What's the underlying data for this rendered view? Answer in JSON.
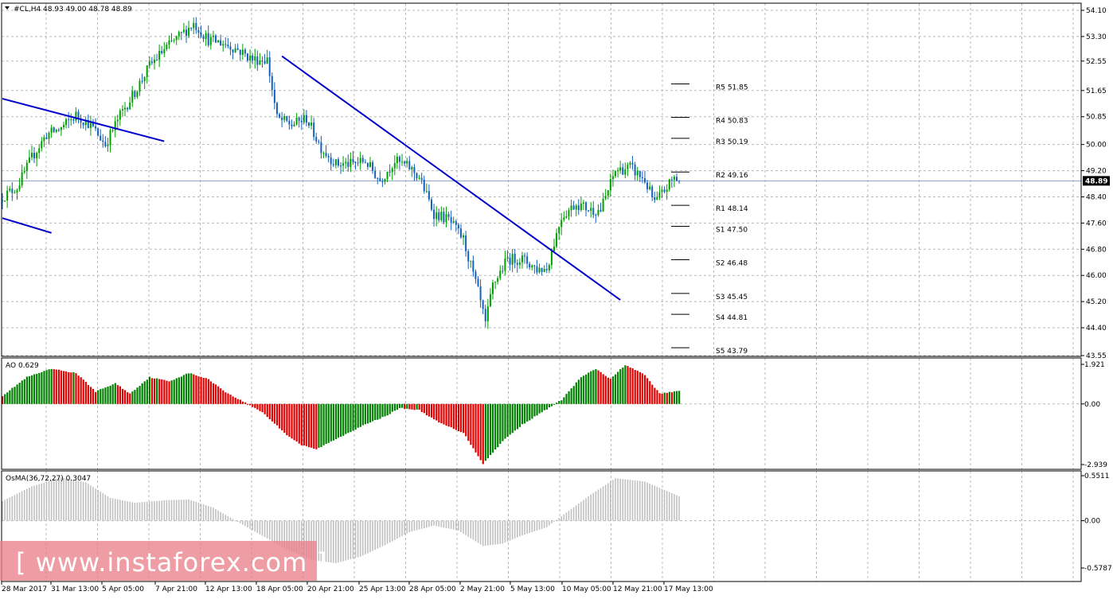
{
  "chart_data": [
    {
      "panel": "price",
      "type": "candlestick",
      "header": "#CL,H4  48.93 49.00 48.78 48.89",
      "symbol": "#CL",
      "timeframe": "H4",
      "ohlc_header": [
        48.93,
        49.0,
        48.78,
        48.89
      ],
      "last_price": 48.89,
      "last_price_label": "48.89",
      "ylim": [
        43.55,
        54.1
      ],
      "ytick_labels": [
        "54.10",
        "53.30",
        "52.55",
        "51.65",
        "50.85",
        "50.00",
        "49.20",
        "48.40",
        "47.60",
        "46.80",
        "46.00",
        "45.20",
        "44.40",
        "43.55"
      ],
      "ytick_values": [
        54.1,
        53.3,
        52.55,
        51.65,
        50.85,
        50.0,
        49.2,
        48.4,
        47.6,
        46.8,
        46.0,
        45.2,
        44.4,
        43.55
      ],
      "xtick_labels": [
        "28 Mar 2017",
        "31 Mar 13:00",
        "5 Apr 05:00",
        "7 Apr 21:00",
        "12 Apr 13:00",
        "18 Apr 05:00",
        "20 Apr 21:00",
        "25 Apr 13:00",
        "28 Apr 05:00",
        "2 May 21:00",
        "5 May 13:00",
        "10 May 05:00",
        "12 May 21:00",
        "17 May 13:00"
      ],
      "close_path": [
        [
          0,
          48.4
        ],
        [
          6,
          48.7
        ],
        [
          12,
          49.6
        ],
        [
          18,
          50.3
        ],
        [
          24,
          50.5
        ],
        [
          30,
          50.9
        ],
        [
          36,
          50.6
        ],
        [
          42,
          50.0
        ],
        [
          48,
          50.9
        ],
        [
          54,
          51.6
        ],
        [
          60,
          52.4
        ],
        [
          66,
          52.9
        ],
        [
          72,
          53.3
        ],
        [
          78,
          53.7
        ],
        [
          84,
          53.2
        ],
        [
          90,
          53.1
        ],
        [
          96,
          52.9
        ],
        [
          102,
          52.6
        ],
        [
          108,
          52.6
        ],
        [
          112,
          50.8
        ],
        [
          118,
          50.6
        ],
        [
          124,
          50.8
        ],
        [
          130,
          49.9
        ],
        [
          136,
          49.4
        ],
        [
          142,
          49.4
        ],
        [
          148,
          49.5
        ],
        [
          154,
          48.9
        ],
        [
          160,
          49.5
        ],
        [
          166,
          49.3
        ],
        [
          170,
          49.0
        ],
        [
          176,
          47.9
        ],
        [
          182,
          47.7
        ],
        [
          188,
          47.1
        ],
        [
          194,
          45.5
        ],
        [
          197,
          44.5
        ],
        [
          200,
          45.7
        ],
        [
          206,
          46.5
        ],
        [
          212,
          46.5
        ],
        [
          218,
          46.2
        ],
        [
          222,
          46.2
        ],
        [
          228,
          47.8
        ],
        [
          234,
          48.2
        ],
        [
          240,
          48.0
        ],
        [
          244,
          48.0
        ],
        [
          250,
          49.2
        ],
        [
          256,
          49.3
        ],
        [
          262,
          48.9
        ],
        [
          266,
          48.2
        ],
        [
          270,
          48.6
        ],
        [
          274,
          49.0
        ],
        [
          276,
          48.89
        ]
      ],
      "trendlines": [
        {
          "start": [
            0,
            51.4
          ],
          "end": [
            66,
            50.1
          ],
          "color": "#0000cc"
        },
        {
          "start": [
            0,
            47.75
          ],
          "end": [
            20,
            47.3
          ],
          "color": "#0000cc"
        },
        {
          "start": [
            114,
            52.7
          ],
          "end": [
            252,
            45.25
          ],
          "color": "#0000cc"
        }
      ],
      "pivot_levels": [
        {
          "label": "R5 51.85",
          "value": 51.85
        },
        {
          "label": "R4 50.83",
          "value": 50.83
        },
        {
          "label": "R3 50.19",
          "value": 50.19
        },
        {
          "label": "R2 49.16",
          "value": 49.16
        },
        {
          "label": "R1 48.14",
          "value": 48.14
        },
        {
          "label": "S1 47.50",
          "value": 47.5
        },
        {
          "label": "S2 46.48",
          "value": 46.48
        },
        {
          "label": "S3 45.45",
          "value": 45.45
        },
        {
          "label": "S4 44.81",
          "value": 44.81
        },
        {
          "label": "S5 43.79",
          "value": 43.79
        }
      ],
      "colors": {
        "up": "#00a000",
        "down": "#1560bd",
        "trendline": "#0000cc",
        "grid": "#b8b8b8",
        "price_line": "#8aa0c8"
      }
    },
    {
      "panel": "ao",
      "type": "bar",
      "header": "AO 0.629",
      "ylim": [
        -2.939,
        1.921
      ],
      "ytick_labels": [
        "1.921",
        "0.00",
        "-2.939"
      ],
      "ytick_values": [
        1.921,
        0.0,
        -2.939
      ],
      "shape_points": [
        [
          0,
          0.4
        ],
        [
          10,
          1.3
        ],
        [
          20,
          1.7
        ],
        [
          30,
          1.5
        ],
        [
          38,
          0.6
        ],
        [
          46,
          1.0
        ],
        [
          52,
          0.5
        ],
        [
          60,
          1.3
        ],
        [
          68,
          1.1
        ],
        [
          76,
          1.5
        ],
        [
          84,
          1.2
        ],
        [
          92,
          0.5
        ],
        [
          100,
          0.0
        ],
        [
          106,
          -0.4
        ],
        [
          116,
          -1.5
        ],
        [
          122,
          -2.0
        ],
        [
          128,
          -2.2
        ],
        [
          136,
          -1.7
        ],
        [
          146,
          -1.1
        ],
        [
          156,
          -0.6
        ],
        [
          162,
          -0.2
        ],
        [
          170,
          -0.3
        ],
        [
          178,
          -0.9
        ],
        [
          188,
          -1.4
        ],
        [
          196,
          -2.9
        ],
        [
          204,
          -1.8
        ],
        [
          212,
          -1.0
        ],
        [
          220,
          -0.4
        ],
        [
          228,
          0.2
        ],
        [
          236,
          1.3
        ],
        [
          242,
          1.7
        ],
        [
          248,
          1.2
        ],
        [
          254,
          1.9
        ],
        [
          262,
          1.4
        ],
        [
          268,
          0.5
        ],
        [
          276,
          0.63
        ]
      ],
      "colors": {
        "up": "#008000",
        "down": "#e00000"
      }
    },
    {
      "panel": "osma",
      "type": "bar",
      "header": "OsMA(36,72,27) 0.3047",
      "ylim": [
        -0.5787,
        0.5511
      ],
      "ytick_labels": [
        "0.5511",
        "0.00",
        "-0.5787"
      ],
      "ytick_values": [
        0.5511,
        0.0,
        -0.5787
      ],
      "shape_points": [
        [
          0,
          0.24
        ],
        [
          12,
          0.42
        ],
        [
          24,
          0.53
        ],
        [
          34,
          0.47
        ],
        [
          44,
          0.28
        ],
        [
          54,
          0.22
        ],
        [
          66,
          0.25
        ],
        [
          76,
          0.26
        ],
        [
          86,
          0.16
        ],
        [
          94,
          0.02
        ],
        [
          104,
          -0.15
        ],
        [
          116,
          -0.35
        ],
        [
          126,
          -0.48
        ],
        [
          136,
          -0.52
        ],
        [
          146,
          -0.44
        ],
        [
          156,
          -0.3
        ],
        [
          166,
          -0.14
        ],
        [
          176,
          -0.06
        ],
        [
          186,
          -0.12
        ],
        [
          196,
          -0.31
        ],
        [
          204,
          -0.28
        ],
        [
          212,
          -0.18
        ],
        [
          222,
          -0.08
        ],
        [
          230,
          0.1
        ],
        [
          240,
          0.32
        ],
        [
          250,
          0.52
        ],
        [
          262,
          0.48
        ],
        [
          276,
          0.3
        ]
      ],
      "colors": {
        "bar": "#c0c0c0"
      }
    }
  ],
  "watermark": "[ www.instaforex.com ]"
}
